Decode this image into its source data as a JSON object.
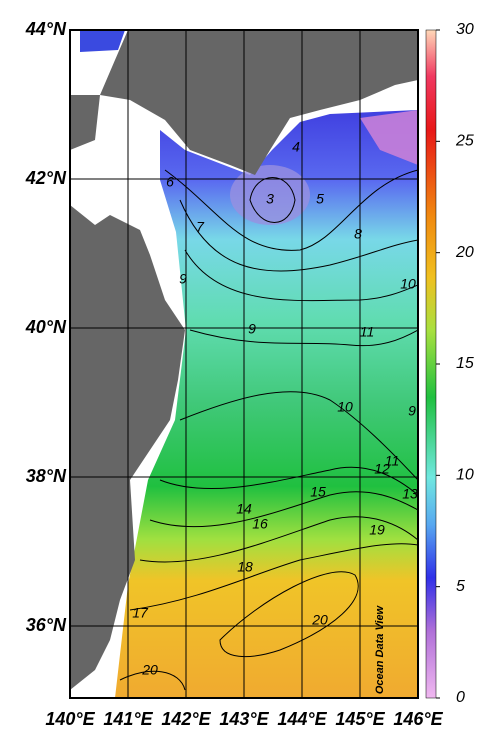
{
  "map": {
    "lat_labels": [
      "44°N",
      "42°N",
      "40°N",
      "38°N",
      "36°N"
    ],
    "lon_labels": [
      "140°E",
      "141°E",
      "142°E",
      "143°E",
      "144°E",
      "145°E",
      "146°E"
    ],
    "colorbar": {
      "lim": [
        0,
        30
      ],
      "ticks": [
        0,
        5,
        10,
        15,
        20,
        25,
        30
      ]
    },
    "contour_labels": [
      6,
      3,
      4,
      5,
      7,
      8,
      9,
      10,
      9,
      11,
      10,
      9,
      11,
      12,
      13,
      15,
      14,
      16,
      19,
      18,
      17,
      20,
      20
    ],
    "watermark": "Ocean Data View"
  }
}
